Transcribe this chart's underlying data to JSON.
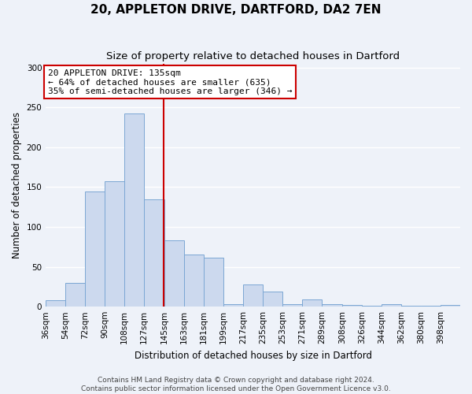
{
  "title": "20, APPLETON DRIVE, DARTFORD, DA2 7EN",
  "subtitle": "Size of property relative to detached houses in Dartford",
  "xlabel": "Distribution of detached houses by size in Dartford",
  "ylabel": "Number of detached properties",
  "footer1": "Contains HM Land Registry data © Crown copyright and database right 2024.",
  "footer2": "Contains public sector information licensed under the Open Government Licence v3.0.",
  "bar_labels": [
    "36sqm",
    "54sqm",
    "72sqm",
    "90sqm",
    "108sqm",
    "127sqm",
    "145sqm",
    "163sqm",
    "181sqm",
    "199sqm",
    "217sqm",
    "235sqm",
    "253sqm",
    "271sqm",
    "289sqm",
    "308sqm",
    "326sqm",
    "344sqm",
    "362sqm",
    "380sqm",
    "398sqm"
  ],
  "bar_values": [
    8,
    30,
    144,
    157,
    242,
    135,
    83,
    65,
    61,
    3,
    28,
    19,
    3,
    9,
    3,
    2,
    1,
    3,
    1,
    1,
    2
  ],
  "bar_color": "#ccd9ee",
  "bar_edge_color": "#7ba7d4",
  "bin_edges": [
    27,
    45,
    63,
    81,
    99,
    117,
    136,
    154,
    172,
    190,
    208,
    226,
    244,
    262,
    280,
    299,
    317,
    335,
    353,
    371,
    389,
    407
  ],
  "vline_x": 135,
  "vline_color": "#cc0000",
  "annotation_text": "20 APPLETON DRIVE: 135sqm\n← 64% of detached houses are smaller (635)\n35% of semi-detached houses are larger (346) →",
  "annotation_box_color": "#ffffff",
  "annotation_border_color": "#cc0000",
  "ylim": [
    0,
    305
  ],
  "yticks": [
    0,
    50,
    100,
    150,
    200,
    250,
    300
  ],
  "background_color": "#eef2f9",
  "grid_color": "#ffffff",
  "title_fontsize": 11,
  "subtitle_fontsize": 9.5,
  "axis_label_fontsize": 8.5,
  "tick_fontsize": 7.5,
  "annotation_fontsize": 8,
  "footer_fontsize": 6.5
}
